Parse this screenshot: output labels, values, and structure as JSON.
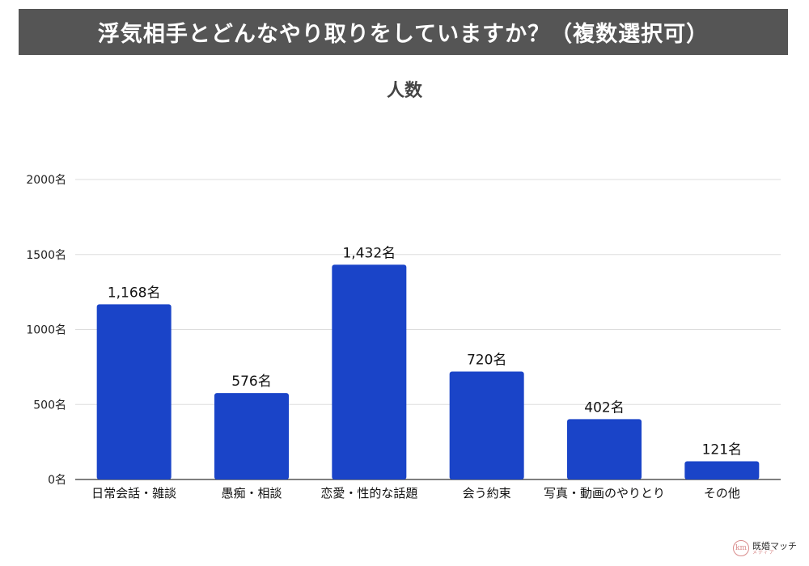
{
  "header": {
    "title": "浮気相手とどんなやり取りをしていますか？（複数選択可）"
  },
  "logo": {
    "name": "既婚マッチ",
    "sub": "メディア",
    "mark": "km"
  },
  "chart_data": {
    "type": "bar",
    "title": "人数",
    "categories": [
      "日常会話・雑談",
      "愚痴・相談",
      "恋愛・性的な話題",
      "会う約束",
      "写真・動画のやりとり",
      "その他"
    ],
    "values": [
      1168,
      576,
      1432,
      720,
      402,
      121
    ],
    "value_labels": [
      "1,168名",
      "576名",
      "1,432名",
      "720名",
      "402名",
      "121名"
    ],
    "yticks": [
      0,
      500,
      1000,
      1500,
      2000
    ],
    "ytick_labels": [
      "0名",
      "500名",
      "1000名",
      "1500名",
      "2000名"
    ],
    "ylim": [
      0,
      2000
    ],
    "grid": true,
    "bar_color": "#1a44c8",
    "xlabel": "",
    "ylabel": ""
  }
}
